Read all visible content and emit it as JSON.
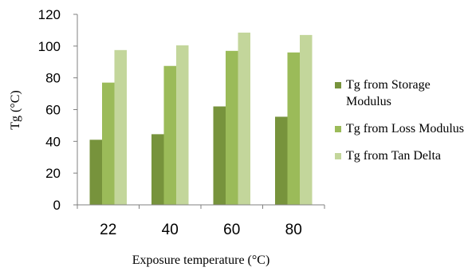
{
  "chart_data": {
    "type": "bar",
    "categories": [
      "22",
      "40",
      "60",
      "80"
    ],
    "series": [
      {
        "name": "Tg from Storage Modulus",
        "values": [
          41,
          44.5,
          62,
          55.5
        ],
        "color": "#77933c"
      },
      {
        "name": "Tg from Loss Modulus",
        "values": [
          77,
          87.5,
          97,
          96
        ],
        "color": "#9bbb59"
      },
      {
        "name": "Tg from Tan Delta",
        "values": [
          97.5,
          100.5,
          108.5,
          107
        ],
        "color": "#c3d69b"
      }
    ],
    "xlabel": "Exposure temperature (°C)",
    "ylabel": "Tg (°C)",
    "ylim": [
      0,
      120
    ],
    "yticks": [
      "0",
      "20",
      "40",
      "60",
      "80",
      "100",
      "120"
    ],
    "grid": false,
    "legend_position": "right"
  }
}
